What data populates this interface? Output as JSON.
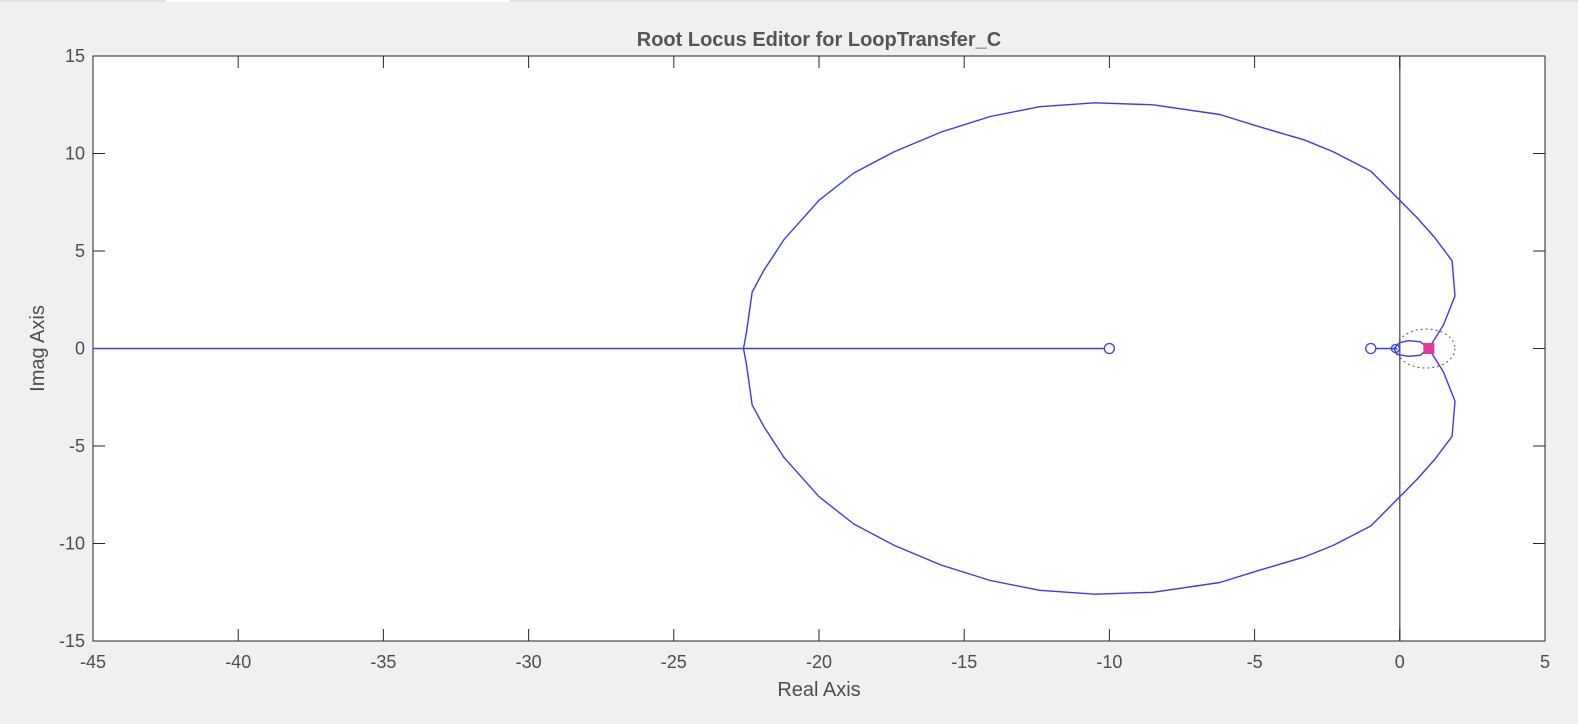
{
  "chart_data": {
    "type": "line",
    "title": "Root Locus Editor for LoopTransfer_C",
    "xlabel": "Real Axis",
    "ylabel": "Imag Axis",
    "xlim": [
      -45,
      5
    ],
    "ylim": [
      -15,
      15
    ],
    "xticks": [
      -45,
      -40,
      -35,
      -30,
      -25,
      -20,
      -15,
      -10,
      -5,
      0,
      5
    ],
    "yticks": [
      -15,
      -10,
      -5,
      0,
      5,
      10,
      15
    ],
    "grid": false,
    "series": [
      {
        "type": "line",
        "color": "#3a3af0",
        "x": [
          -45,
          -10
        ],
        "y": [
          0,
          0
        ]
      },
      {
        "type": "line",
        "color": "#3a3af0",
        "x": [
          -1.0,
          -0.1
        ],
        "y": [
          0,
          0
        ]
      },
      {
        "type": "line",
        "color": "#3a3af0",
        "x": [
          1.0,
          1.5,
          1.9,
          1.8,
          1.2,
          0.6,
          0.0,
          -1.0,
          -2.3,
          -3.3,
          -4.9,
          -6.2,
          -8.5,
          -10.5,
          -12.4,
          -14.1,
          -15.8,
          -17.4,
          -18.8,
          -20.0,
          -21.2,
          -21.9,
          -22.3,
          -22.5,
          -22.6,
          -22.5,
          -22.3,
          -21.9,
          -21.2,
          -20.0,
          -18.8,
          -17.4,
          -15.8,
          -14.1,
          -12.4,
          -10.5,
          -8.5,
          -6.2,
          -4.9,
          -3.3,
          -2.3,
          -1.0,
          0.0,
          0.6,
          1.2,
          1.8,
          1.9,
          1.5,
          1.0
        ],
        "y": [
          0,
          1.2,
          2.7,
          4.5,
          5.7,
          6.7,
          7.6,
          9.1,
          10.1,
          10.7,
          11.4,
          12.0,
          12.5,
          12.6,
          12.4,
          11.9,
          11.1,
          10.1,
          9.0,
          7.6,
          5.6,
          4.0,
          2.9,
          0.8,
          0,
          -0.8,
          -2.9,
          -4.0,
          -5.6,
          -7.6,
          -9.0,
          -10.1,
          -11.1,
          -11.9,
          -12.4,
          -12.6,
          -12.5,
          -12.0,
          -11.4,
          -10.7,
          -10.1,
          -9.1,
          -7.6,
          -6.7,
          -5.7,
          -4.5,
          -2.7,
          -1.2,
          0
        ]
      },
      {
        "type": "line",
        "color": "#3a3af0",
        "x": [
          1.0,
          0.7,
          0.3,
          0.0,
          -0.2,
          -0.1,
          0.3,
          0.7,
          1.0
        ],
        "y": [
          0,
          0.35,
          0.4,
          0.3,
          0,
          -0.3,
          -0.4,
          -0.35,
          0
        ]
      }
    ],
    "zeros": [
      {
        "x": -10,
        "y": 0
      },
      {
        "x": -1,
        "y": 0
      }
    ],
    "closed_loop_pole": {
      "x": 1.0,
      "y": 0,
      "color": "#e8379b"
    },
    "reference_circle": {
      "center_x": 0.9,
      "radius": 1.0
    }
  }
}
